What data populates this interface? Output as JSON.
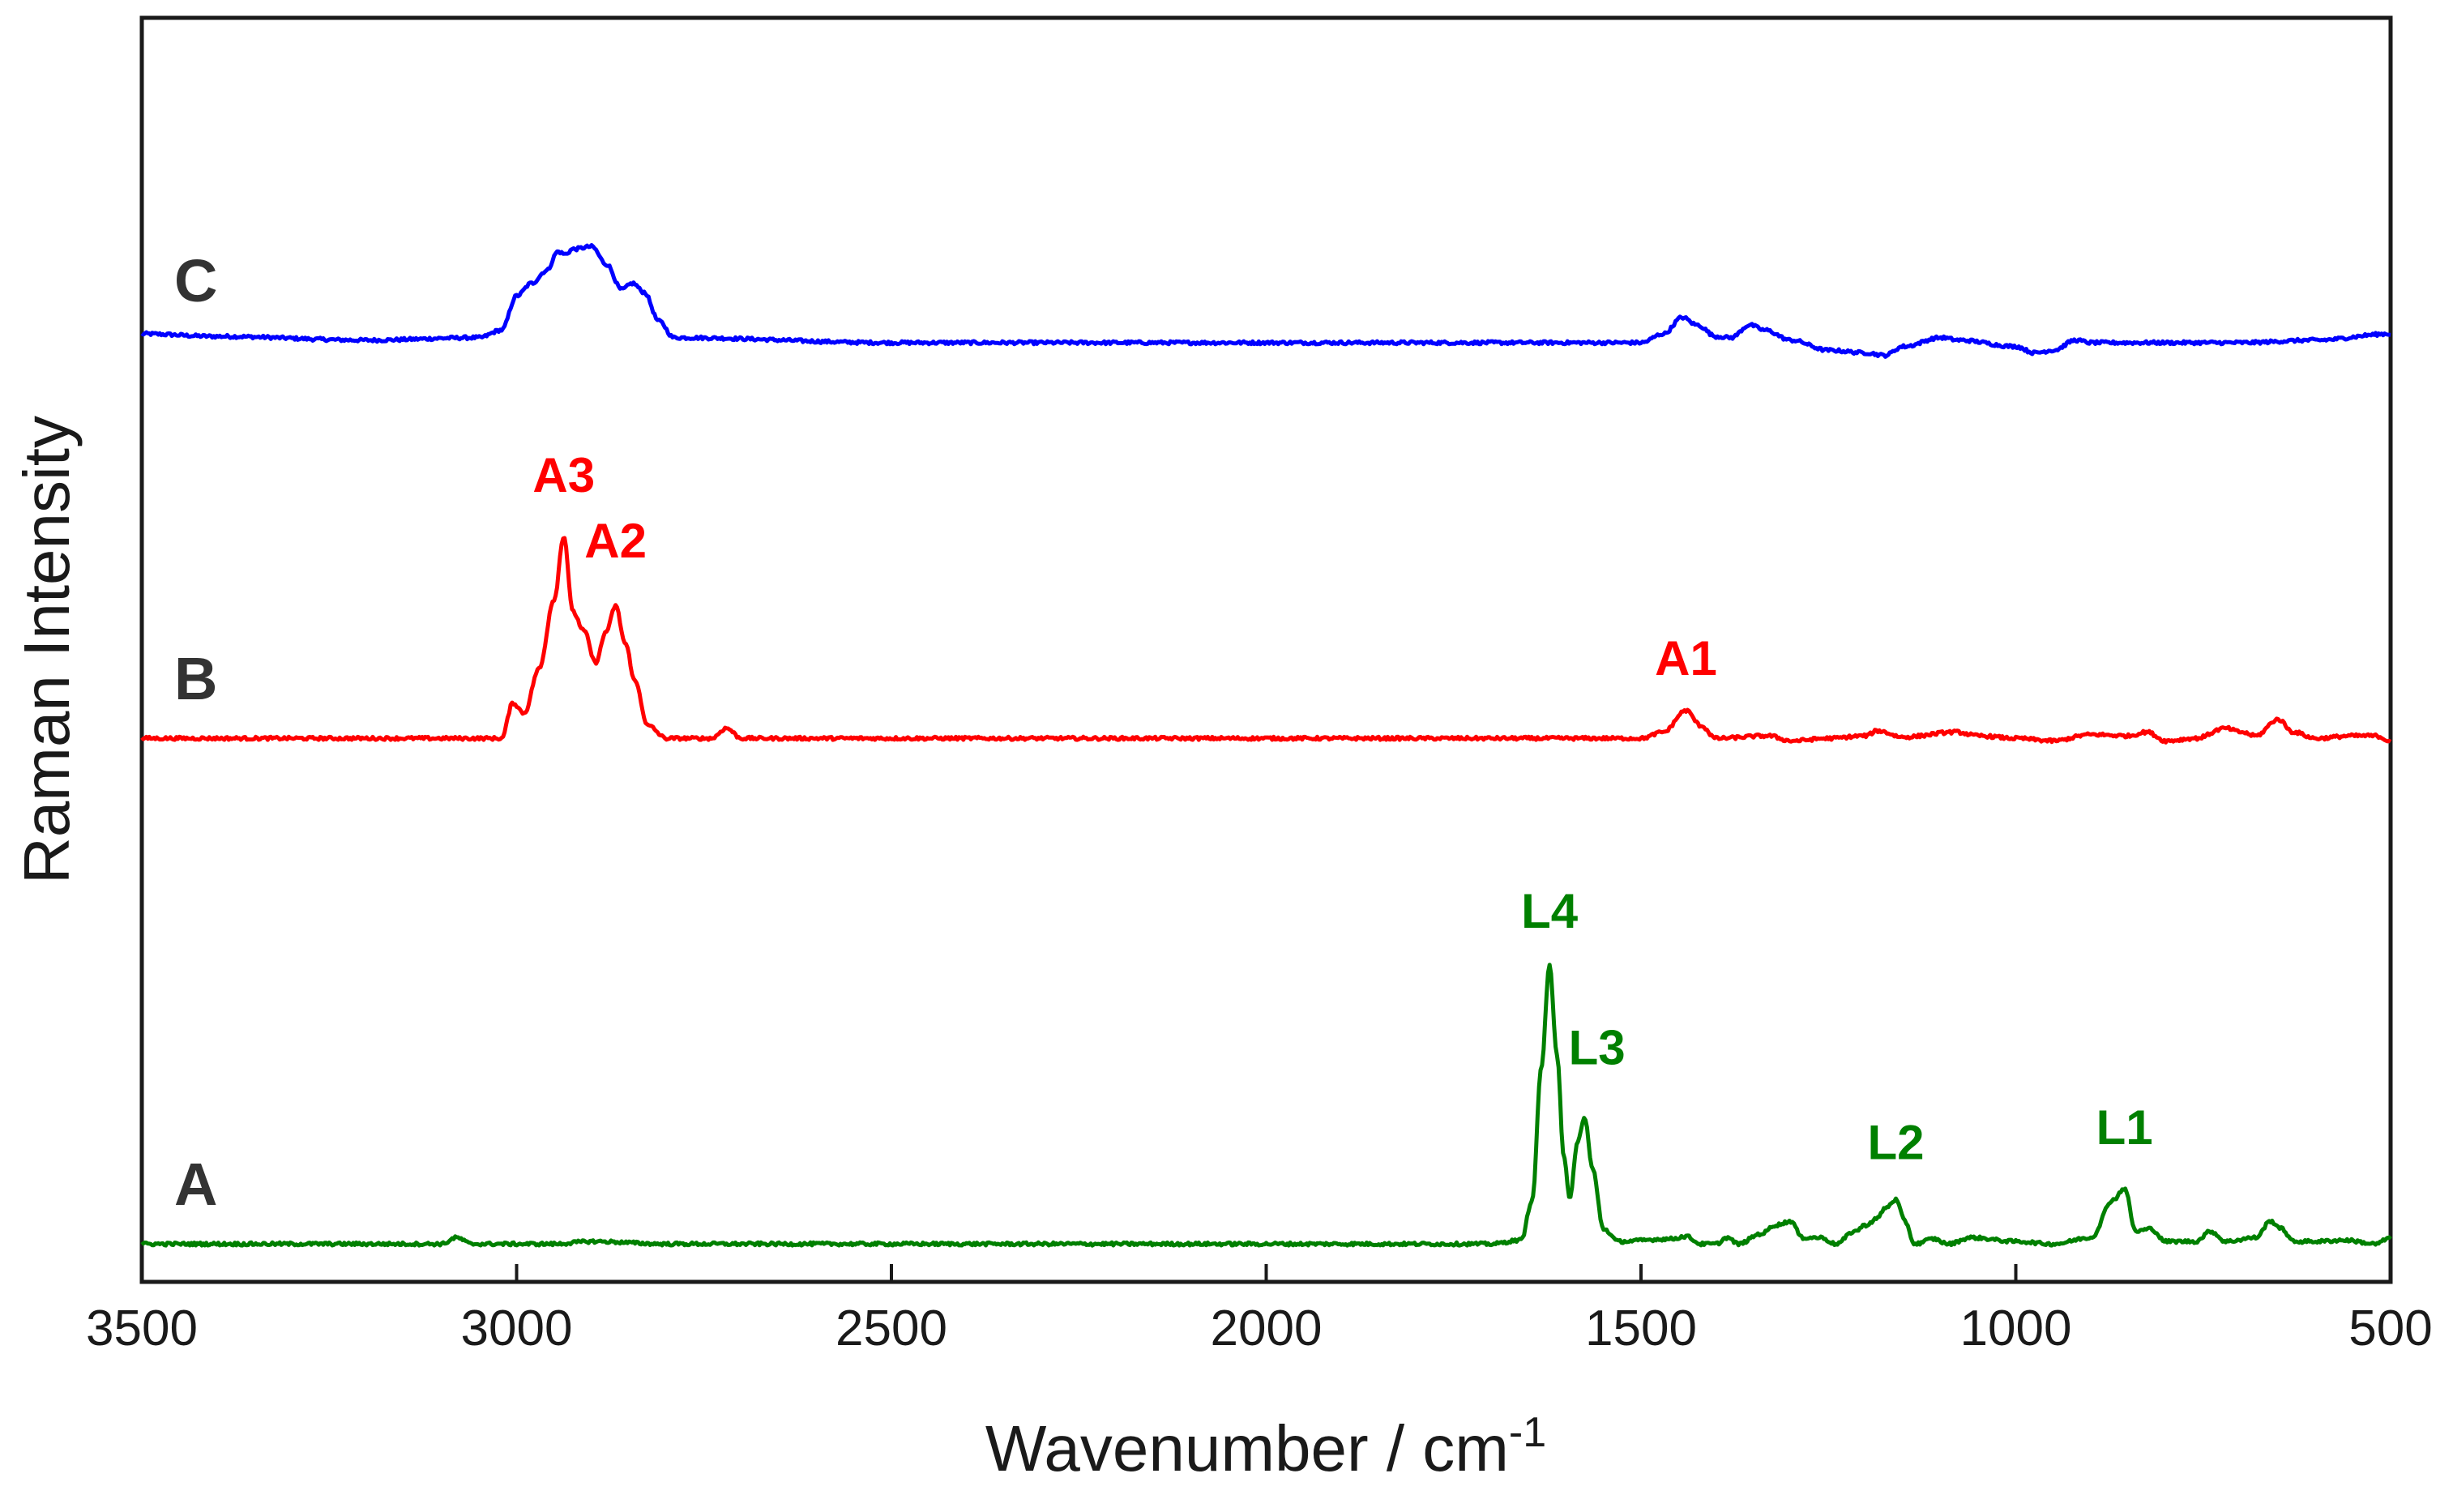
{
  "chart_data": {
    "type": "line",
    "title": "",
    "xlabel": "Wavenumber / cm",
    "xlabel_sup": "-1",
    "ylabel": "Raman Intensity",
    "xlim": [
      3500,
      500
    ],
    "ylim": [
      0,
      10
    ],
    "x_ticks": [
      3500,
      3000,
      2500,
      2000,
      1500,
      1000,
      500
    ],
    "x_tick_labels": [
      "3500",
      "3000",
      "2500",
      "2000",
      "1500",
      "1000",
      "500"
    ],
    "grid": false,
    "series": [
      {
        "name": "C",
        "color": "#0000ff",
        "baseline": 7.45,
        "points": [
          [
            3500,
            0.05
          ],
          [
            3400,
            0.03
          ],
          [
            3200,
            0.0
          ],
          [
            3050,
            0.02
          ],
          [
            3020,
            0.08
          ],
          [
            3000,
            0.35
          ],
          [
            2980,
            0.45
          ],
          [
            2960,
            0.55
          ],
          [
            2945,
            0.7
          ],
          [
            2935,
            0.68
          ],
          [
            2925,
            0.72
          ],
          [
            2900,
            0.74
          ],
          [
            2880,
            0.6
          ],
          [
            2860,
            0.4
          ],
          [
            2845,
            0.45
          ],
          [
            2830,
            0.38
          ],
          [
            2810,
            0.15
          ],
          [
            2790,
            0.02
          ],
          [
            2500,
            -0.02
          ],
          [
            2000,
            -0.02
          ],
          [
            1600,
            -0.02
          ],
          [
            1500,
            -0.02
          ],
          [
            1470,
            0.05
          ],
          [
            1445,
            0.18
          ],
          [
            1425,
            0.12
          ],
          [
            1400,
            0.03
          ],
          [
            1380,
            0.02
          ],
          [
            1355,
            0.12
          ],
          [
            1335,
            0.08
          ],
          [
            1300,
            0.0
          ],
          [
            1250,
            -0.08
          ],
          [
            1200,
            -0.1
          ],
          [
            1175,
            -0.12
          ],
          [
            1150,
            -0.05
          ],
          [
            1100,
            0.02
          ],
          [
            1075,
            0.0
          ],
          [
            1000,
            -0.05
          ],
          [
            975,
            -0.1
          ],
          [
            950,
            -0.08
          ],
          [
            920,
            0.0
          ],
          [
            900,
            -0.02
          ],
          [
            850,
            -0.02
          ],
          [
            700,
            -0.02
          ],
          [
            600,
            0.0
          ],
          [
            500,
            0.05
          ]
        ]
      },
      {
        "name": "B",
        "color": "#ff0000",
        "baseline": 4.3,
        "points": [
          [
            3500,
            0.0
          ],
          [
            3100,
            0.0
          ],
          [
            3020,
            0.0
          ],
          [
            3005,
            0.28
          ],
          [
            2990,
            0.2
          ],
          [
            2970,
            0.55
          ],
          [
            2950,
            1.1
          ],
          [
            2937,
            1.6
          ],
          [
            2925,
            1.0
          ],
          [
            2910,
            0.85
          ],
          [
            2895,
            0.6
          ],
          [
            2880,
            0.85
          ],
          [
            2868,
            1.05
          ],
          [
            2855,
            0.75
          ],
          [
            2842,
            0.45
          ],
          [
            2825,
            0.1
          ],
          [
            2800,
            0.0
          ],
          [
            2740,
            0.0
          ],
          [
            2720,
            0.08
          ],
          [
            2700,
            0.0
          ],
          [
            1500,
            0.0
          ],
          [
            1470,
            0.05
          ],
          [
            1440,
            0.22
          ],
          [
            1420,
            0.1
          ],
          [
            1400,
            0.0
          ],
          [
            1330,
            0.02
          ],
          [
            1300,
            -0.02
          ],
          [
            1250,
            0.0
          ],
          [
            1200,
            0.02
          ],
          [
            1185,
            0.06
          ],
          [
            1150,
            0.01
          ],
          [
            1080,
            0.05
          ],
          [
            1050,
            0.02
          ],
          [
            1000,
            0.0
          ],
          [
            950,
            -0.02
          ],
          [
            900,
            0.03
          ],
          [
            850,
            0.02
          ],
          [
            825,
            0.05
          ],
          [
            800,
            -0.02
          ],
          [
            760,
            0.0
          ],
          [
            720,
            0.08
          ],
          [
            700,
            0.05
          ],
          [
            680,
            0.02
          ],
          [
            650,
            0.15
          ],
          [
            630,
            0.05
          ],
          [
            600,
            0.0
          ],
          [
            550,
            0.02
          ],
          [
            520,
            0.02
          ],
          [
            500,
            -0.02
          ]
        ]
      },
      {
        "name": "A",
        "color": "#008000",
        "baseline": 0.3,
        "points": [
          [
            3500,
            0.0
          ],
          [
            3100,
            0.0
          ],
          [
            3080,
            0.05
          ],
          [
            3060,
            0.0
          ],
          [
            2950,
            0.0
          ],
          [
            2900,
            0.02
          ],
          [
            2800,
            0.0
          ],
          [
            1700,
            0.0
          ],
          [
            1660,
            0.03
          ],
          [
            1645,
            0.35
          ],
          [
            1633,
            1.4
          ],
          [
            1622,
            2.2
          ],
          [
            1612,
            1.5
          ],
          [
            1603,
            0.7
          ],
          [
            1595,
            0.35
          ],
          [
            1585,
            0.8
          ],
          [
            1575,
            1.0
          ],
          [
            1565,
            0.6
          ],
          [
            1550,
            0.12
          ],
          [
            1530,
            0.02
          ],
          [
            1460,
            0.04
          ],
          [
            1440,
            0.06
          ],
          [
            1420,
            0.0
          ],
          [
            1400,
            0.0
          ],
          [
            1385,
            0.05
          ],
          [
            1370,
            0.0
          ],
          [
            1340,
            0.08
          ],
          [
            1320,
            0.15
          ],
          [
            1300,
            0.18
          ],
          [
            1285,
            0.05
          ],
          [
            1260,
            0.05
          ],
          [
            1240,
            0.0
          ],
          [
            1215,
            0.1
          ],
          [
            1200,
            0.15
          ],
          [
            1185,
            0.2
          ],
          [
            1175,
            0.28
          ],
          [
            1160,
            0.35
          ],
          [
            1148,
            0.18
          ],
          [
            1135,
            0.0
          ],
          [
            1110,
            0.04
          ],
          [
            1090,
            0.0
          ],
          [
            1060,
            0.05
          ],
          [
            1000,
            0.02
          ],
          [
            950,
            0.0
          ],
          [
            900,
            0.05
          ],
          [
            870,
            0.35
          ],
          [
            855,
            0.44
          ],
          [
            840,
            0.1
          ],
          [
            820,
            0.12
          ],
          [
            800,
            0.02
          ],
          [
            760,
            0.02
          ],
          [
            740,
            0.1
          ],
          [
            720,
            0.02
          ],
          [
            680,
            0.05
          ],
          [
            660,
            0.18
          ],
          [
            645,
            0.12
          ],
          [
            630,
            0.02
          ],
          [
            600,
            0.02
          ],
          [
            560,
            0.03
          ],
          [
            520,
            0.0
          ],
          [
            500,
            0.05
          ]
        ]
      }
    ],
    "trace_labels": [
      {
        "text": "C",
        "series": "C"
      },
      {
        "text": "B",
        "series": "B"
      },
      {
        "text": "A",
        "series": "A"
      }
    ],
    "annotations": [
      {
        "text": "A3",
        "series": "B",
        "x": 2937,
        "dy": 0.35
      },
      {
        "text": "A2",
        "series": "B",
        "x": 2868,
        "dy": 0.38
      },
      {
        "text": "A1",
        "series": "B",
        "x": 1440,
        "dy": 0.28
      },
      {
        "text": "L4",
        "series": "A",
        "x": 1622,
        "dy": 0.3
      },
      {
        "text": "L3",
        "series": "A",
        "x": 1575,
        "dy": 0.42,
        "align": "left"
      },
      {
        "text": "L2",
        "series": "A",
        "x": 1160,
        "dy": 0.32
      },
      {
        "text": "L1",
        "series": "A",
        "x": 855,
        "dy": 0.35
      }
    ]
  }
}
